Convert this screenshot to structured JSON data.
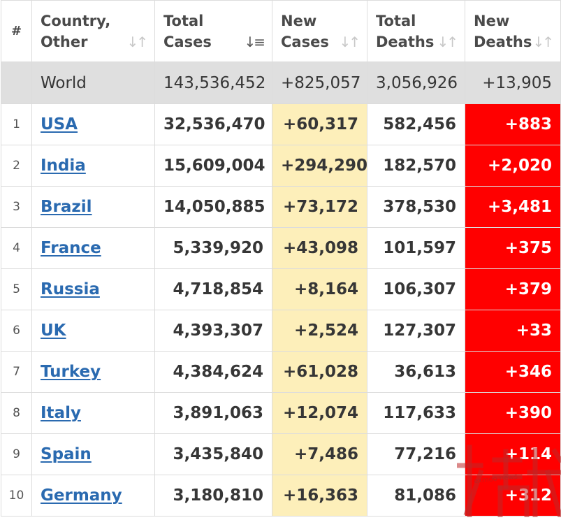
{
  "header": {
    "rank": "#",
    "country": "Country, Other",
    "total_cases": "Total Cases",
    "new_cases": "New Cases",
    "total_deaths": "Total Deaths",
    "new_deaths": "New Deaths",
    "sort_icon": "sort-icon",
    "sorted_column": "total_cases",
    "sorted_direction": "descending"
  },
  "world": {
    "label": "World",
    "total_cases": "143,536,452",
    "new_cases": "+825,057",
    "total_deaths": "3,056,926",
    "new_deaths": "+13,905"
  },
  "rows": [
    {
      "rank": "1",
      "country": "USA",
      "total_cases": "32,536,470",
      "new_cases": "+60,317",
      "total_deaths": "582,456",
      "new_deaths": "+883"
    },
    {
      "rank": "2",
      "country": "India",
      "total_cases": "15,609,004",
      "new_cases": "+294,290",
      "total_deaths": "182,570",
      "new_deaths": "+2,020"
    },
    {
      "rank": "3",
      "country": "Brazil",
      "total_cases": "14,050,885",
      "new_cases": "+73,172",
      "total_deaths": "378,530",
      "new_deaths": "+3,481"
    },
    {
      "rank": "4",
      "country": "France",
      "total_cases": "5,339,920",
      "new_cases": "+43,098",
      "total_deaths": "101,597",
      "new_deaths": "+375"
    },
    {
      "rank": "5",
      "country": "Russia",
      "total_cases": "4,718,854",
      "new_cases": "+8,164",
      "total_deaths": "106,307",
      "new_deaths": "+379"
    },
    {
      "rank": "6",
      "country": "UK",
      "total_cases": "4,393,307",
      "new_cases": "+2,524",
      "total_deaths": "127,307",
      "new_deaths": "+33"
    },
    {
      "rank": "7",
      "country": "Turkey",
      "total_cases": "4,384,624",
      "new_cases": "+61,028",
      "total_deaths": "36,613",
      "new_deaths": "+346"
    },
    {
      "rank": "8",
      "country": "Italy",
      "total_cases": "3,891,063",
      "new_cases": "+12,074",
      "total_deaths": "117,633",
      "new_deaths": "+390"
    },
    {
      "rank": "9",
      "country": "Spain",
      "total_cases": "3,435,840",
      "new_cases": "+7,486",
      "total_deaths": "77,216",
      "new_deaths": "+114"
    },
    {
      "rank": "10",
      "country": "Germany",
      "total_cases": "3,180,810",
      "new_cases": "+16,363",
      "total_deaths": "81,086",
      "new_deaths": "+312"
    }
  ],
  "watermark": {
    "text": "exmoo news"
  },
  "colors": {
    "header_text": "#4a4a4a",
    "world_row_bg": "#dfdfdf",
    "new_cases_bg": "#fdefba",
    "new_deaths_bg": "#ff0000",
    "link": "#2a6ab0",
    "border": "#dcdcdc"
  }
}
